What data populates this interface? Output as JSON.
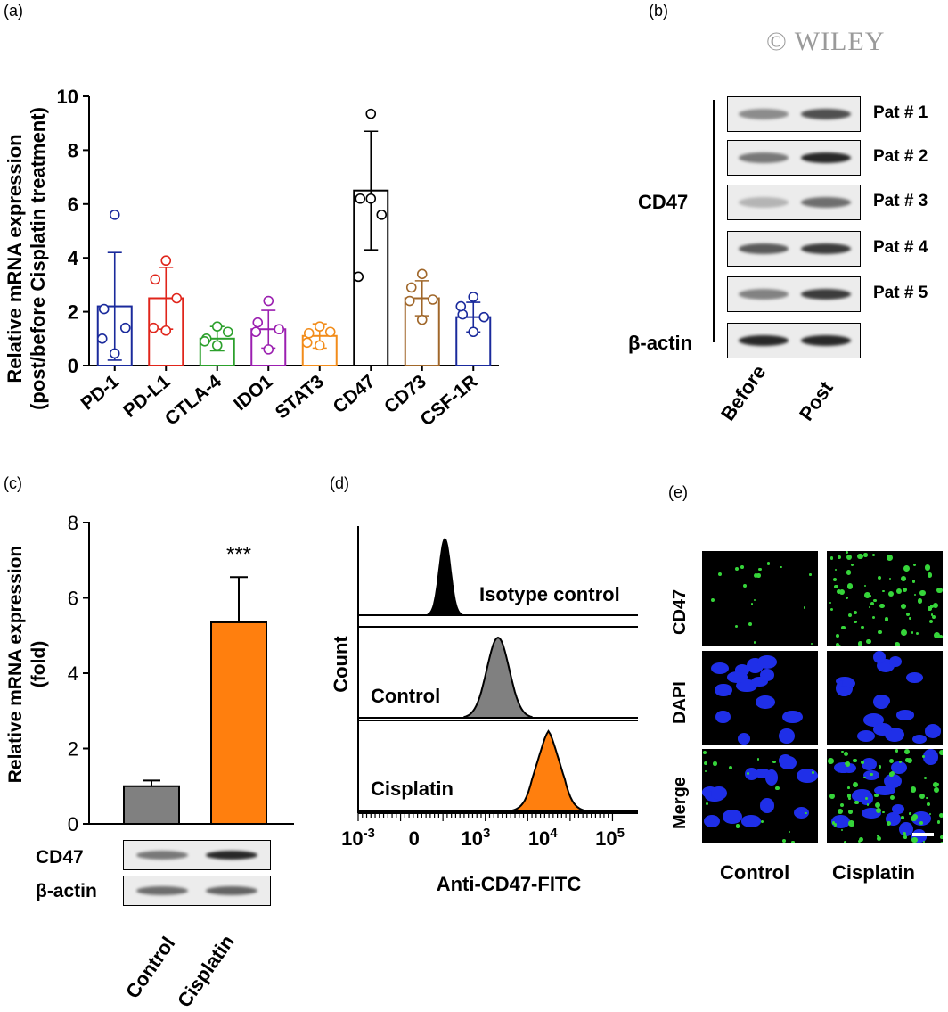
{
  "panels": {
    "a": "(a)",
    "b": "(b)",
    "c": "(c)",
    "d": "(d)",
    "e": "(e)"
  },
  "watermark": "© WILEY",
  "chart_data": [
    {
      "panel": "a",
      "type": "bar",
      "ylabel_line1": "Relative mRNA expression",
      "ylabel_line2": "(post/before Cisplatin treatment)",
      "ylim": [
        0,
        10
      ],
      "yticks": [
        "0",
        "2",
        "4",
        "6",
        "8",
        "10"
      ],
      "categories": [
        "PD-1",
        "PD-L1",
        "CTLA-4",
        "IDO1",
        "STAT3",
        "CD47",
        "CD73",
        "CSF-1R"
      ],
      "colors": [
        "#1a2a9c",
        "#e0251b",
        "#2ca02c",
        "#9b1fb0",
        "#f28c1a",
        "#000000",
        "#a0672a",
        "#1a2a9c"
      ],
      "means": [
        2.2,
        2.5,
        1.0,
        1.35,
        1.1,
        6.5,
        2.5,
        1.8
      ],
      "sd": [
        2.0,
        1.15,
        0.45,
        0.7,
        0.45,
        2.2,
        0.65,
        0.55
      ],
      "points": [
        [
          5.6,
          2.1,
          1.4,
          0.45,
          1.0
        ],
        [
          3.9,
          3.2,
          2.5,
          1.3,
          1.4
        ],
        [
          1.45,
          1.0,
          1.25,
          0.75,
          0.9
        ],
        [
          2.4,
          1.6,
          1.35,
          0.6,
          1.25
        ],
        [
          1.45,
          1.2,
          1.25,
          0.75,
          0.85
        ],
        [
          9.35,
          6.2,
          5.6,
          6.2,
          3.3
        ],
        [
          3.4,
          2.9,
          2.45,
          1.7,
          2.4
        ],
        [
          2.55,
          1.9,
          1.8,
          1.25,
          2.2
        ]
      ]
    },
    {
      "panel": "c",
      "type": "bar",
      "ylabel_line1": "Relative mRNA expression",
      "ylabel_line2": "(fold)",
      "ylim": [
        0,
        8
      ],
      "yticks": [
        "0",
        "2",
        "4",
        "6",
        "8"
      ],
      "categories": [
        "Control",
        "Cisplatin"
      ],
      "values": [
        1.0,
        5.35
      ],
      "errors": [
        0.15,
        1.2
      ],
      "colors": [
        "#808080",
        "#ff7f0e"
      ],
      "significance": "***"
    },
    {
      "panel": "d",
      "type": "area",
      "ylabel": "Count",
      "xlabel": "Anti-CD47-FITC",
      "x_ticks": [
        {
          "base": "10",
          "exp": "-3"
        },
        {
          "base": "0",
          "exp": ""
        },
        {
          "base": "10",
          "exp": "3"
        },
        {
          "base": "10",
          "exp": "4"
        },
        {
          "base": "10",
          "exp": "5"
        }
      ],
      "series": [
        {
          "name": "Isotype control",
          "color": "#000000",
          "peak_log10": 2.6
        },
        {
          "name": "Control",
          "color": "#808080",
          "peak_log10": 3.4
        },
        {
          "name": "Cisplatin",
          "color": "#ff7f0e",
          "peak_log10": 4.0
        }
      ]
    }
  ],
  "panel_b": {
    "group_label": "CD47",
    "loading_label": "β-actin",
    "patients": [
      "Pat # 1",
      "Pat # 2",
      "Pat # 3",
      "Pat # 4",
      "Pat # 5"
    ],
    "lanes": [
      "Before",
      "Post"
    ]
  },
  "panel_c_blot": {
    "rows": [
      "CD47",
      "β-actin"
    ],
    "lanes": [
      "Control",
      "Cisplatin"
    ]
  },
  "panel_e": {
    "rows": [
      "CD47",
      "DAPI",
      "Merge"
    ],
    "columns": [
      "Control",
      "Cisplatin"
    ]
  }
}
